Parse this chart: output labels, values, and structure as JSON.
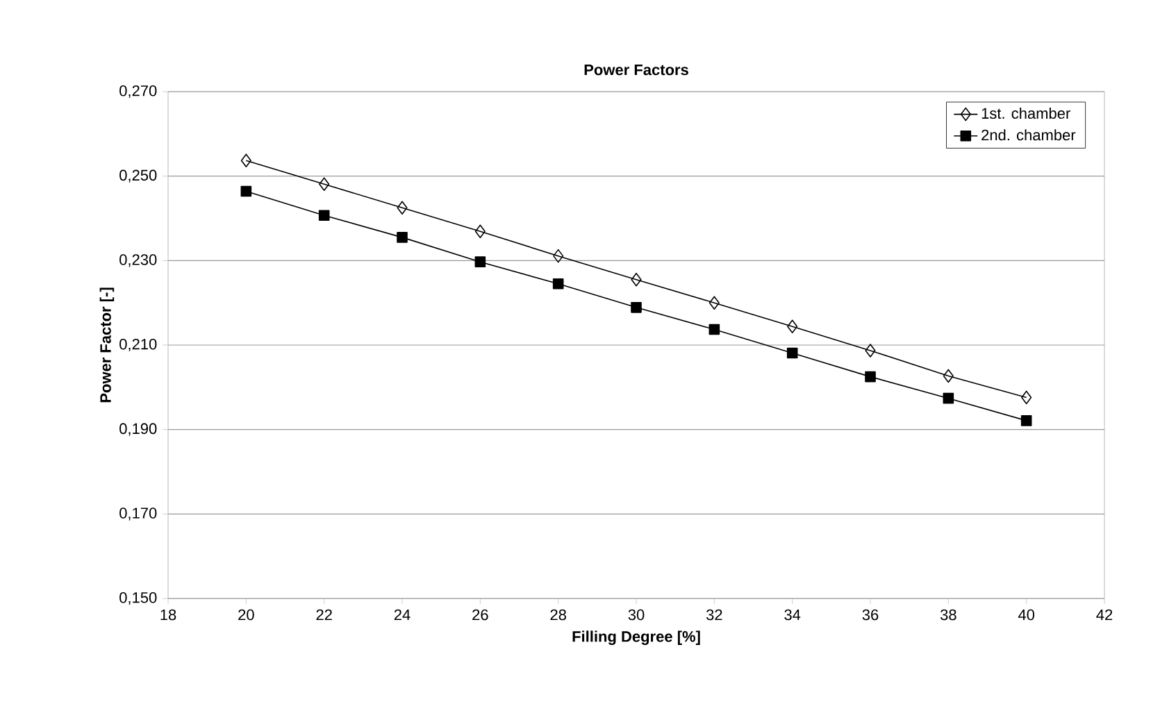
{
  "chart_data": {
    "type": "line",
    "title": "Power Factors",
    "xlabel": "Filling Degree [%]",
    "ylabel": "Power Factor [-]",
    "x": [
      20,
      22,
      24,
      26,
      28,
      30,
      32,
      34,
      36,
      38,
      40
    ],
    "series": [
      {
        "name": "1st. chamber",
        "color": "#000000",
        "marker": "diamond",
        "values": [
          0.2537,
          0.2481,
          0.2425,
          0.2369,
          0.2311,
          0.2255,
          0.22,
          0.2144,
          0.2087,
          0.2027,
          0.1976
        ]
      },
      {
        "name": "2nd. chamber",
        "color": "#000000",
        "marker": "square",
        "values": [
          0.2464,
          0.2407,
          0.2355,
          0.2297,
          0.2245,
          0.2189,
          0.2137,
          0.2081,
          0.2025,
          0.1974,
          0.1921
        ]
      }
    ],
    "xlim": [
      18,
      42
    ],
    "xticks": [
      18,
      20,
      22,
      24,
      26,
      28,
      30,
      32,
      34,
      36,
      38,
      40,
      42
    ],
    "ylim": [
      0.15,
      0.27
    ],
    "yticks": [
      {
        "value": 0.15,
        "label": "0,150"
      },
      {
        "value": 0.17,
        "label": "0,170"
      },
      {
        "value": 0.19,
        "label": "0,190"
      },
      {
        "value": 0.21,
        "label": "0,210"
      },
      {
        "value": 0.23,
        "label": "0,230"
      },
      {
        "value": 0.25,
        "label": "0,250"
      },
      {
        "value": 0.27,
        "label": "0,270"
      }
    ],
    "grid": "y",
    "legend": "top right",
    "line_style": "solid"
  }
}
